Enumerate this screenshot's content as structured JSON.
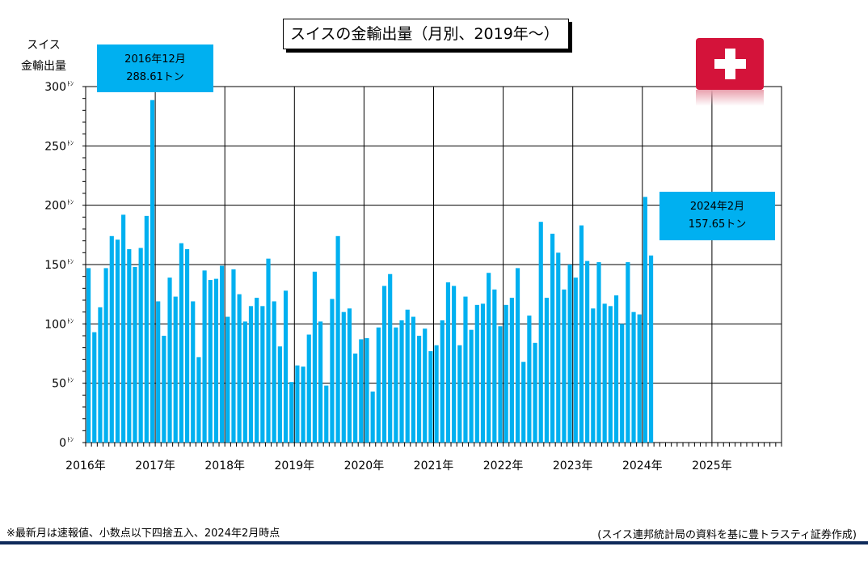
{
  "title": "スイスの金輸出量（月別、2019年～）",
  "ylabel_line1": "スイス",
  "ylabel_line2": "金輸出量",
  "callouts": {
    "peak": {
      "line1": "2016年12月",
      "line2": "288.61トン"
    },
    "latest": {
      "line1": "2024年2月",
      "line2": "157.65トン"
    }
  },
  "flag_icon": "swiss-flag-icon",
  "footnote": "※最新月は速報値、小数点以下四捨五入、2024年2月時点",
  "source": "(スイス連邦統計局の資料を基に豊トラスティ証券作成)",
  "colors": {
    "bar": "#00b0f0",
    "flag": "#d4133a",
    "rule": "#0f2a5a"
  },
  "chart_data": {
    "type": "bar",
    "title": "スイスの金輸出量（月別、2019年～）",
    "ylabel": "スイス 金輸出量",
    "unit": "トン",
    "y_tick_unit": "ﾄﾝ",
    "ylim": [
      0,
      300
    ],
    "yticks": [
      0,
      50,
      100,
      150,
      200,
      250,
      300
    ],
    "year_labels": [
      "2016年",
      "2017年",
      "2018年",
      "2019年",
      "2020年",
      "2021年",
      "2022年",
      "2023年",
      "2024年",
      "2025年"
    ],
    "start": "2016-01",
    "end_axis": "2025-12",
    "grid": true,
    "values": [
      147,
      93,
      114,
      147,
      174,
      171,
      192,
      163,
      148,
      164,
      191,
      288.61,
      119,
      90,
      139,
      123,
      168,
      163,
      119,
      72,
      145,
      137,
      138,
      149,
      106,
      146,
      125,
      102,
      115,
      122,
      115,
      155,
      119,
      81,
      128,
      51,
      65,
      64,
      91,
      144,
      102,
      48,
      121,
      174,
      110,
      113,
      75,
      87,
      88,
      43,
      97,
      132,
      142,
      97,
      103,
      112,
      106,
      90,
      96,
      77,
      82,
      103,
      135,
      132,
      82,
      123,
      95,
      116,
      117,
      143,
      129,
      98,
      116,
      122,
      147,
      68,
      107,
      84,
      186,
      122,
      176,
      160,
      129,
      150,
      139,
      183,
      153,
      113,
      152,
      117,
      115,
      124,
      100,
      152,
      110,
      108,
      207,
      157.65
    ]
  }
}
